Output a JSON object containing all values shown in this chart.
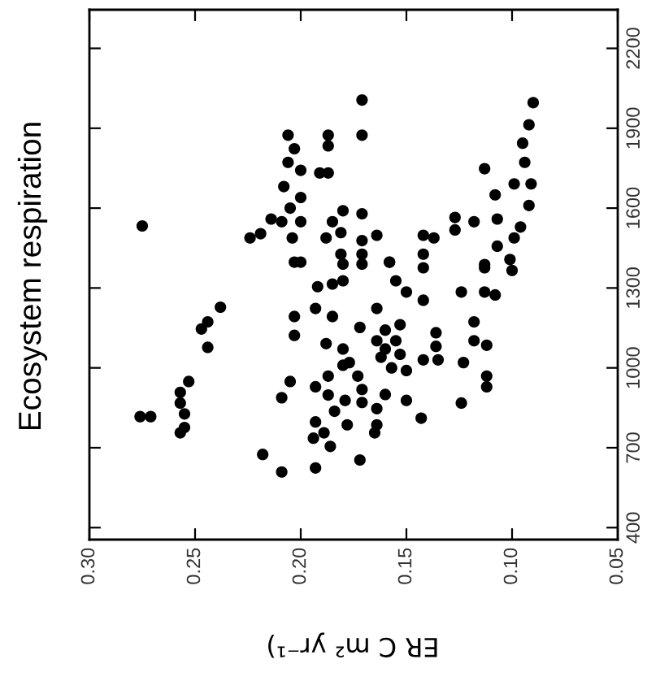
{
  "chart_data": {
    "type": "scatter",
    "title": "Ecosystem respiration",
    "xlabel": "ER C m² yr⁻¹)",
    "xlim": [
      0.3,
      0.05
    ],
    "xticks": [
      {
        "value": 0.3,
        "label": "0.30"
      },
      {
        "value": 0.25,
        "label": "0.25"
      },
      {
        "value": 0.2,
        "label": "0.20"
      },
      {
        "value": 0.15,
        "label": "0.15"
      },
      {
        "value": 0.1,
        "label": "0.10"
      },
      {
        "value": 0.05,
        "label": "0.05"
      }
    ],
    "ylim": [
      355,
      2345
    ],
    "yticks": [
      400,
      700,
      1000,
      1300,
      1600,
      1900,
      2200
    ],
    "marker": "circle",
    "grid": false,
    "series": [
      {
        "color": "#000000",
        "x": [
          0.275,
          0.171,
          0.171,
          0.09,
          0.092,
          0.095,
          0.094,
          0.091,
          0.099,
          0.113,
          0.108,
          0.092,
          0.107,
          0.096,
          0.099,
          0.107,
          0.101,
          0.113,
          0.118,
          0.127,
          0.127,
          0.137,
          0.142,
          0.142,
          0.158,
          0.164,
          0.171,
          0.171,
          0.171,
          0.18,
          0.185,
          0.188,
          0.181,
          0.181,
          0.187,
          0.187,
          0.187,
          0.191,
          0.206,
          0.203,
          0.206,
          0.2,
          0.208,
          0.2,
          0.205,
          0.2,
          0.209,
          0.214,
          0.204,
          0.2,
          0.219,
          0.224,
          0.203,
          0.18,
          0.171,
          0.158,
          0.142,
          0.113,
          0.1,
          0.192,
          0.185,
          0.18,
          0.193,
          0.155,
          0.15,
          0.142,
          0.124,
          0.113,
          0.108,
          0.238,
          0.244,
          0.247,
          0.244,
          0.203,
          0.203,
          0.185,
          0.188,
          0.172,
          0.164,
          0.16,
          0.153,
          0.16,
          0.153,
          0.136,
          0.136,
          0.135,
          0.142,
          0.118,
          0.118,
          0.112,
          0.123,
          0.112,
          0.112,
          0.124,
          0.15,
          0.143,
          0.15,
          0.162,
          0.18,
          0.18,
          0.173,
          0.171,
          0.179,
          0.164,
          0.184,
          0.187,
          0.193,
          0.205,
          0.209,
          0.253,
          0.257,
          0.257,
          0.255,
          0.276,
          0.271,
          0.257,
          0.255,
          0.187,
          0.193,
          0.194,
          0.189,
          0.186,
          0.178,
          0.164,
          0.165,
          0.172,
          0.218,
          0.209,
          0.193,
          0.171,
          0.16,
          0.157,
          0.155,
          0.164,
          0.177
        ],
        "values": [
          1533,
          2006,
          1874,
          1996,
          1913,
          1844,
          1772,
          1691,
          1691,
          1748,
          1650,
          1610,
          1559,
          1529,
          1488,
          1457,
          1407,
          1388,
          1549,
          1565,
          1518,
          1488,
          1498,
          1427,
          1397,
          1498,
          1579,
          1478,
          1427,
          1590,
          1549,
          1488,
          1508,
          1427,
          1874,
          1834,
          1732,
          1732,
          1874,
          1823,
          1772,
          1742,
          1681,
          1640,
          1600,
          1549,
          1549,
          1559,
          1488,
          1397,
          1504,
          1488,
          1397,
          1390,
          1390,
          1397,
          1376,
          1376,
          1366,
          1305,
          1315,
          1327,
          1223,
          1327,
          1285,
          1254,
          1285,
          1285,
          1274,
          1228,
          1173,
          1146,
          1077,
          1193,
          1122,
          1193,
          1091,
          1152,
          1223,
          1142,
          1162,
          1071,
          1051,
          1132,
          1081,
          1030,
          1030,
          1173,
          1102,
          1085,
          1020,
          969,
          929,
          868,
          878,
          811,
          990,
          1040,
          1071,
          1010,
          969,
          919,
          878,
          847,
          837,
          969,
          929,
          949,
          888,
          949,
          908,
          868,
          827,
          817,
          817,
          756,
          776,
          898,
          797,
          736,
          756,
          705,
          786,
          786,
          756,
          654,
          675,
          609,
          624,
          870,
          900,
          1000,
          1102,
          1102,
          1020
        ]
      }
    ]
  }
}
